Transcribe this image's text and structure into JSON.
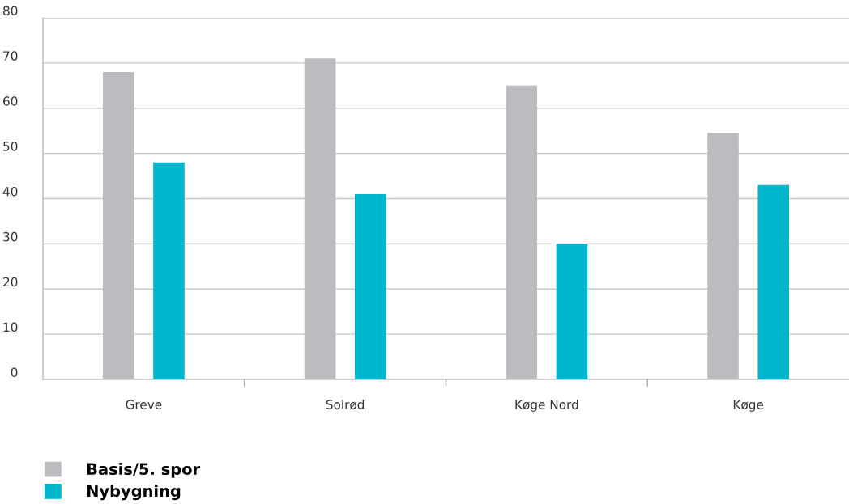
{
  "chart_data": {
    "type": "bar",
    "categories": [
      "Greve",
      "Solrød",
      "Køge Nord",
      "Køge"
    ],
    "series": [
      {
        "name": "Basis/5. spor",
        "color": "#bbbcc0",
        "values": [
          68,
          71,
          65,
          54.5
        ]
      },
      {
        "name": "Nybygning",
        "color": "#00b7cd",
        "values": [
          48,
          41,
          30,
          43
        ]
      }
    ],
    "ylim": [
      0,
      80
    ],
    "yticks": [
      0,
      10,
      20,
      30,
      40,
      50,
      60,
      70,
      80
    ],
    "grid": "y",
    "legend": "bottom left"
  }
}
